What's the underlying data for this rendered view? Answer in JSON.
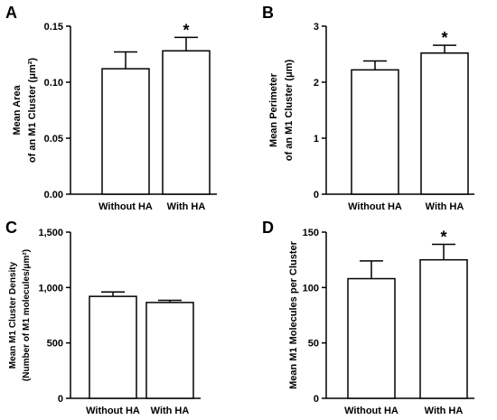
{
  "chart_data": [
    {
      "type": "bar",
      "panel": "A",
      "ylabel_lines": [
        "Mean Area",
        "of an M1 Cluster (μm²)"
      ],
      "categories": [
        "Without HA",
        "With HA"
      ],
      "values": [
        0.112,
        0.128
      ],
      "errors": [
        0.015,
        0.012
      ],
      "significance": [
        "",
        "*"
      ],
      "ylim": [
        0,
        0.15
      ],
      "yticks": [
        0,
        0.05,
        0.1,
        0.15
      ],
      "ytick_labels": [
        "0.00",
        "0.05",
        "0.10",
        "0.15"
      ]
    },
    {
      "type": "bar",
      "panel": "B",
      "ylabel_lines": [
        "Mean Perimeter",
        "of an M1 Cluster (μm)"
      ],
      "categories": [
        "Without HA",
        "With HA"
      ],
      "values": [
        2.22,
        2.52
      ],
      "errors": [
        0.16,
        0.14
      ],
      "significance": [
        "",
        "*"
      ],
      "ylim": [
        0,
        3
      ],
      "yticks": [
        0,
        1,
        2,
        3
      ],
      "ytick_labels": [
        "0",
        "1",
        "2",
        "3"
      ]
    },
    {
      "type": "bar",
      "panel": "C",
      "ylabel_lines": [
        "Mean M1 Cluster Density",
        "(Number of M1 molecules/μm²)"
      ],
      "categories": [
        "Without HA",
        "With HA"
      ],
      "values": [
        920,
        865
      ],
      "errors": [
        40,
        20
      ],
      "significance": [
        "",
        ""
      ],
      "ylim": [
        0,
        1500
      ],
      "yticks": [
        0,
        500,
        1000,
        1500
      ],
      "ytick_labels": [
        "0",
        "500",
        "1,000",
        "1,500"
      ]
    },
    {
      "type": "bar",
      "panel": "D",
      "ylabel_lines": [
        "Mean M1 Molecules per Cluster"
      ],
      "categories": [
        "Without HA",
        "With HA"
      ],
      "values": [
        108,
        125
      ],
      "errors": [
        16,
        14
      ],
      "significance": [
        "",
        "*"
      ],
      "ylim": [
        0,
        150
      ],
      "yticks": [
        0,
        50,
        100,
        150
      ],
      "ytick_labels": [
        "0",
        "50",
        "100",
        "150"
      ]
    }
  ]
}
